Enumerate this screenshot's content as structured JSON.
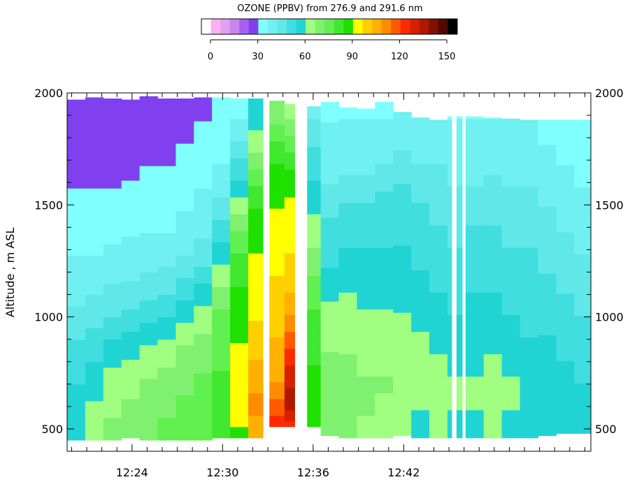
{
  "chart_data": {
    "type": "heatmap",
    "title": "OZONE (PPBV) from 276.9 and 291.6 nm",
    "ylabel": "Altitude , m ASL",
    "xlabel": "",
    "x_ticks": [
      "12:24",
      "12:30",
      "12:36",
      "12:42"
    ],
    "x_tick_minutes": [
      24,
      30,
      36,
      42
    ],
    "xlim_minutes": [
      19.7,
      54.4
    ],
    "y_ticks": [
      "500",
      "1000",
      "1500",
      "2000"
    ],
    "y_tick_values": [
      500,
      1000,
      1500,
      2000
    ],
    "ylim": [
      400,
      2000
    ],
    "colorbar": {
      "ticks": [
        "0",
        "30",
        "60",
        "90",
        "120",
        "150"
      ],
      "range": [
        0,
        150
      ],
      "colors": [
        "#ffffff",
        "#ffb0f0",
        "#e4a0f0",
        "#c884f0",
        "#a860f0",
        "#8040f0",
        "#80ffff",
        "#70f0f0",
        "#60e8e8",
        "#40dede",
        "#20d4d4",
        "#a0ff80",
        "#80f070",
        "#60f050",
        "#40e830",
        "#20e000",
        "#ffff00",
        "#ffd000",
        "#ffb000",
        "#ff8c00",
        "#ff5a00",
        "#ff2a00",
        "#d82000",
        "#b01800",
        "#801000",
        "#500800",
        "#000000"
      ]
    },
    "profile_columns_minutes": [
      19.7,
      20.9,
      22.1,
      23.3,
      24.5,
      25.7,
      26.9,
      28.1,
      29.3,
      30.5,
      31.7,
      32.9,
      34.1,
      35.3,
      36.5,
      37.7,
      38.9,
      40.1,
      41.3,
      42.5,
      43.7,
      44.9,
      46.1,
      47.3,
      48.5,
      49.7,
      50.9,
      52.1,
      53.3
    ],
    "profile_top_altitude_m": [
      1970,
      1980,
      1975,
      1970,
      1985,
      1975,
      1975,
      1980,
      1980,
      1975,
      1975,
      1965,
      1950,
      1940,
      1960,
      1935,
      1930,
      1960,
      1915,
      1890,
      1880,
      1895,
      1895,
      1890,
      1885,
      1880,
      1880,
      1880,
      1880
    ],
    "profile_bottom_altitude_m": [
      450,
      450,
      450,
      460,
      450,
      450,
      450,
      450,
      460,
      460,
      460,
      510,
      510,
      510,
      470,
      460,
      460,
      460,
      470,
      460,
      460,
      460,
      460,
      460,
      460,
      460,
      470,
      480,
      480
    ],
    "ozone_ppbv_by_altitude": {
      "altitudes_m": [
        500,
        600,
        700,
        800,
        900,
        1000,
        1100,
        1200,
        1300,
        1400,
        1500,
        1600,
        1700,
        1800,
        1900
      ],
      "columns": [
        [
          62,
          60,
          58,
          55,
          52,
          48,
          45,
          42,
          40,
          38,
          36,
          34,
          33,
          32,
          31
        ],
        [
          66,
          64,
          62,
          58,
          55,
          50,
          46,
          43,
          40,
          38,
          36,
          34,
          33,
          32,
          31
        ],
        [
          70,
          68,
          66,
          62,
          58,
          52,
          48,
          44,
          41,
          38,
          36,
          34,
          33,
          32,
          31
        ],
        [
          72,
          70,
          68,
          64,
          60,
          54,
          49,
          45,
          42,
          39,
          37,
          35,
          33,
          32,
          31
        ],
        [
          74,
          72,
          70,
          66,
          62,
          56,
          50,
          46,
          42,
          40,
          38,
          36,
          34,
          33,
          32
        ],
        [
          76,
          74,
          72,
          68,
          64,
          58,
          52,
          47,
          43,
          40,
          38,
          36,
          34,
          33,
          32
        ],
        [
          78,
          76,
          74,
          72,
          68,
          62,
          56,
          50,
          45,
          42,
          40,
          38,
          36,
          34,
          33
        ],
        [
          80,
          78,
          76,
          74,
          70,
          66,
          60,
          54,
          48,
          44,
          42,
          40,
          38,
          36,
          34
        ],
        [
          86,
          84,
          82,
          80,
          78,
          76,
          72,
          66,
          60,
          54,
          48,
          44,
          40,
          38,
          36
        ],
        [
          92,
          95,
          96,
          94,
          92,
          90,
          88,
          84,
          80,
          74,
          66,
          58,
          52,
          46,
          40
        ],
        [
          104,
          112,
          108,
          104,
          100,
          98,
          96,
          94,
          92,
          90,
          86,
          80,
          72,
          66,
          60
        ],
        [
          128,
          118,
          110,
          106,
          104,
          102,
          100,
          98,
          96,
          94,
          92,
          90,
          86,
          80,
          72
        ],
        [
          122,
          136,
          132,
          126,
          118,
          110,
          104,
          100,
          98,
          96,
          94,
          90,
          84,
          76,
          68
        ],
        [
          92,
          90,
          88,
          86,
          84,
          82,
          78,
          74,
          70,
          66,
          62,
          58,
          54,
          50,
          46
        ],
        [
          74,
          74,
          72,
          70,
          68,
          66,
          62,
          58,
          56,
          54,
          50,
          46,
          44,
          42,
          40
        ],
        [
          72,
          74,
          72,
          70,
          68,
          66,
          64,
          60,
          58,
          56,
          52,
          48,
          44,
          42,
          40
        ],
        [
          68,
          70,
          70,
          68,
          66,
          64,
          62,
          60,
          58,
          56,
          52,
          48,
          44,
          42,
          40
        ],
        [
          66,
          68,
          70,
          68,
          66,
          64,
          62,
          60,
          58,
          56,
          54,
          50,
          46,
          42,
          40
        ],
        [
          64,
          66,
          68,
          68,
          66,
          64,
          62,
          60,
          58,
          56,
          54,
          52,
          48,
          44,
          42
        ],
        [
          62,
          64,
          66,
          66,
          64,
          62,
          60,
          58,
          56,
          54,
          52,
          50,
          46,
          44,
          42
        ],
        [
          64,
          66,
          66,
          64,
          62,
          60,
          58,
          56,
          54,
          52,
          50,
          48,
          46,
          44,
          42
        ],
        [
          62,
          64,
          64,
          62,
          60,
          58,
          56,
          54,
          52,
          50,
          48,
          46,
          44,
          42,
          40
        ],
        [
          62,
          64,
          64,
          62,
          60,
          60,
          58,
          56,
          54,
          52,
          50,
          46,
          44,
          42,
          40
        ],
        [
          64,
          66,
          66,
          64,
          62,
          60,
          58,
          56,
          54,
          52,
          50,
          48,
          44,
          42,
          40
        ],
        [
          62,
          64,
          64,
          62,
          60,
          58,
          56,
          54,
          52,
          50,
          48,
          46,
          44,
          42,
          40
        ],
        [
          62,
          62,
          62,
          60,
          58,
          56,
          56,
          54,
          52,
          50,
          48,
          46,
          44,
          42,
          40
        ],
        [
          60,
          62,
          62,
          60,
          58,
          56,
          54,
          52,
          50,
          48,
          46,
          44,
          42,
          40,
          38
        ],
        [
          58,
          60,
          60,
          58,
          56,
          54,
          52,
          50,
          48,
          46,
          44,
          42,
          40,
          38,
          36
        ],
        [
          58,
          60,
          58,
          56,
          54,
          52,
          50,
          48,
          46,
          44,
          42,
          40,
          38,
          36,
          34
        ]
      ]
    },
    "gaps_minutes": [
      [
        32.7,
        33.1
      ],
      [
        34.8,
        35.6
      ],
      [
        45.2,
        45.5
      ],
      [
        45.9,
        46.1
      ]
    ],
    "grid": false,
    "legend": "top-center colorbar"
  }
}
